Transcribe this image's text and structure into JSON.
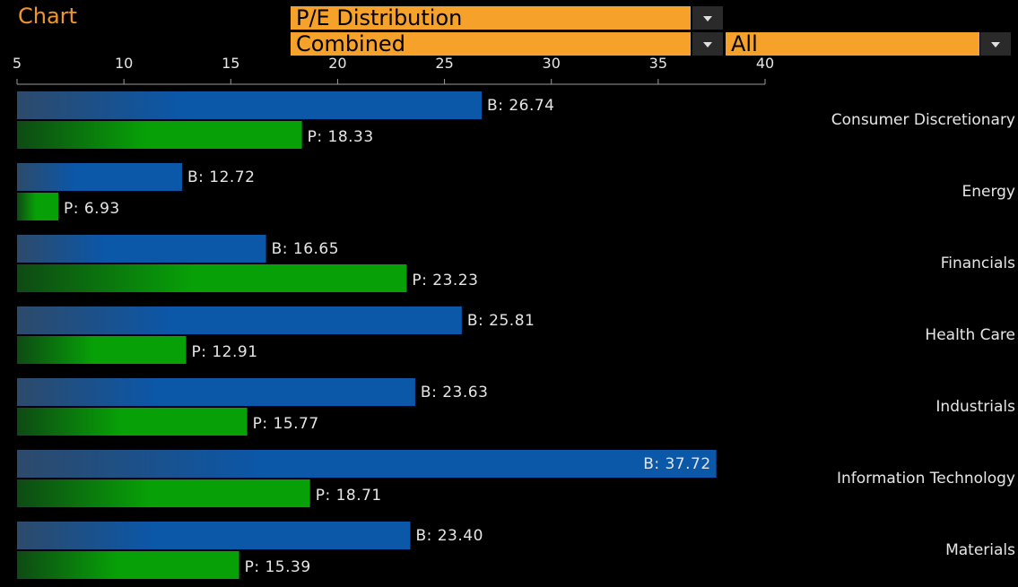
{
  "header": {
    "panel_title": "Chart",
    "metric_select": "P/E Distribution",
    "mode_select": "Combined",
    "filter_select": "All"
  },
  "colors": {
    "accent": "#f5a12a",
    "bar_b": "#0b57a8",
    "bar_p": "#07a007",
    "label_text": "#e6e6e6"
  },
  "chart_data": {
    "type": "bar",
    "orientation": "horizontal",
    "xlim": [
      5,
      40
    ],
    "xticks": [
      "5",
      "10",
      "15",
      "20",
      "25",
      "30",
      "35",
      "40"
    ],
    "categories": [
      "Consumer Discretionary",
      "Energy",
      "Financials",
      "Health Care",
      "Industrials",
      "Information Technology",
      "Materials"
    ],
    "series": [
      {
        "name": "B",
        "values": [
          26.74,
          12.72,
          16.65,
          25.81,
          23.63,
          37.72,
          23.4
        ],
        "labels": [
          "B: 26.74",
          "B: 12.72",
          "B: 16.65",
          "B: 25.81",
          "B: 23.63",
          "B: 37.72",
          "B: 23.40"
        ]
      },
      {
        "name": "P",
        "values": [
          18.33,
          6.93,
          23.23,
          12.91,
          15.77,
          18.71,
          15.39
        ],
        "labels": [
          "P: 18.33",
          "P: 6.93",
          "P: 23.23",
          "P: 12.91",
          "P: 15.77",
          "P: 18.71",
          "P: 15.39"
        ]
      }
    ],
    "legend": "none",
    "grid": false
  }
}
